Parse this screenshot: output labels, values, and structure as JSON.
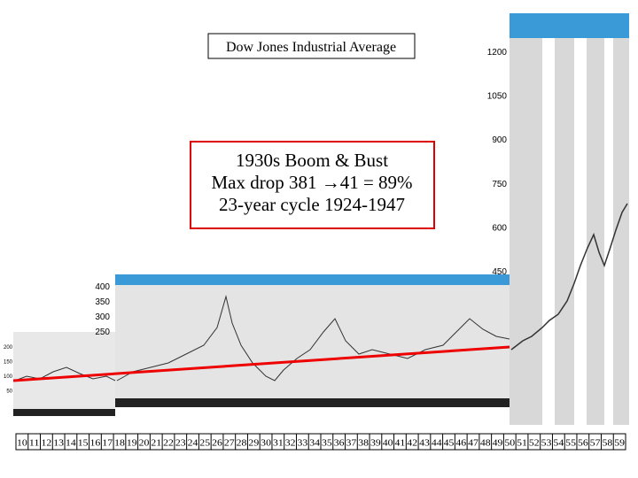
{
  "slide": {
    "title": "Dow Jones Industrial Average",
    "callout": [
      "1930s Boom & Bust",
      "Max drop 381 →41 = 89%",
      "23-year cycle 1924-1947"
    ],
    "right_scale": [
      "1200",
      "1050",
      "900",
      "750",
      "600",
      "450"
    ],
    "middle_scale": [
      "400",
      "350",
      "300",
      "250"
    ],
    "left_scale": [
      "200",
      "150",
      "100",
      "50"
    ],
    "year_strip": [
      "10",
      "11",
      "12",
      "13",
      "14",
      "15",
      "16",
      "17",
      "18",
      "19",
      "20",
      "21",
      "22",
      "23",
      "24",
      "25",
      "26",
      "27",
      "28",
      "29",
      "30",
      "31",
      "32",
      "33",
      "34",
      "35",
      "36",
      "37",
      "38",
      "39",
      "40",
      "41",
      "42",
      "43",
      "44",
      "45",
      "46",
      "47",
      "48",
      "49",
      "50",
      "51",
      "52",
      "53",
      "54",
      "55",
      "56",
      "57",
      "58",
      "59"
    ]
  }
}
